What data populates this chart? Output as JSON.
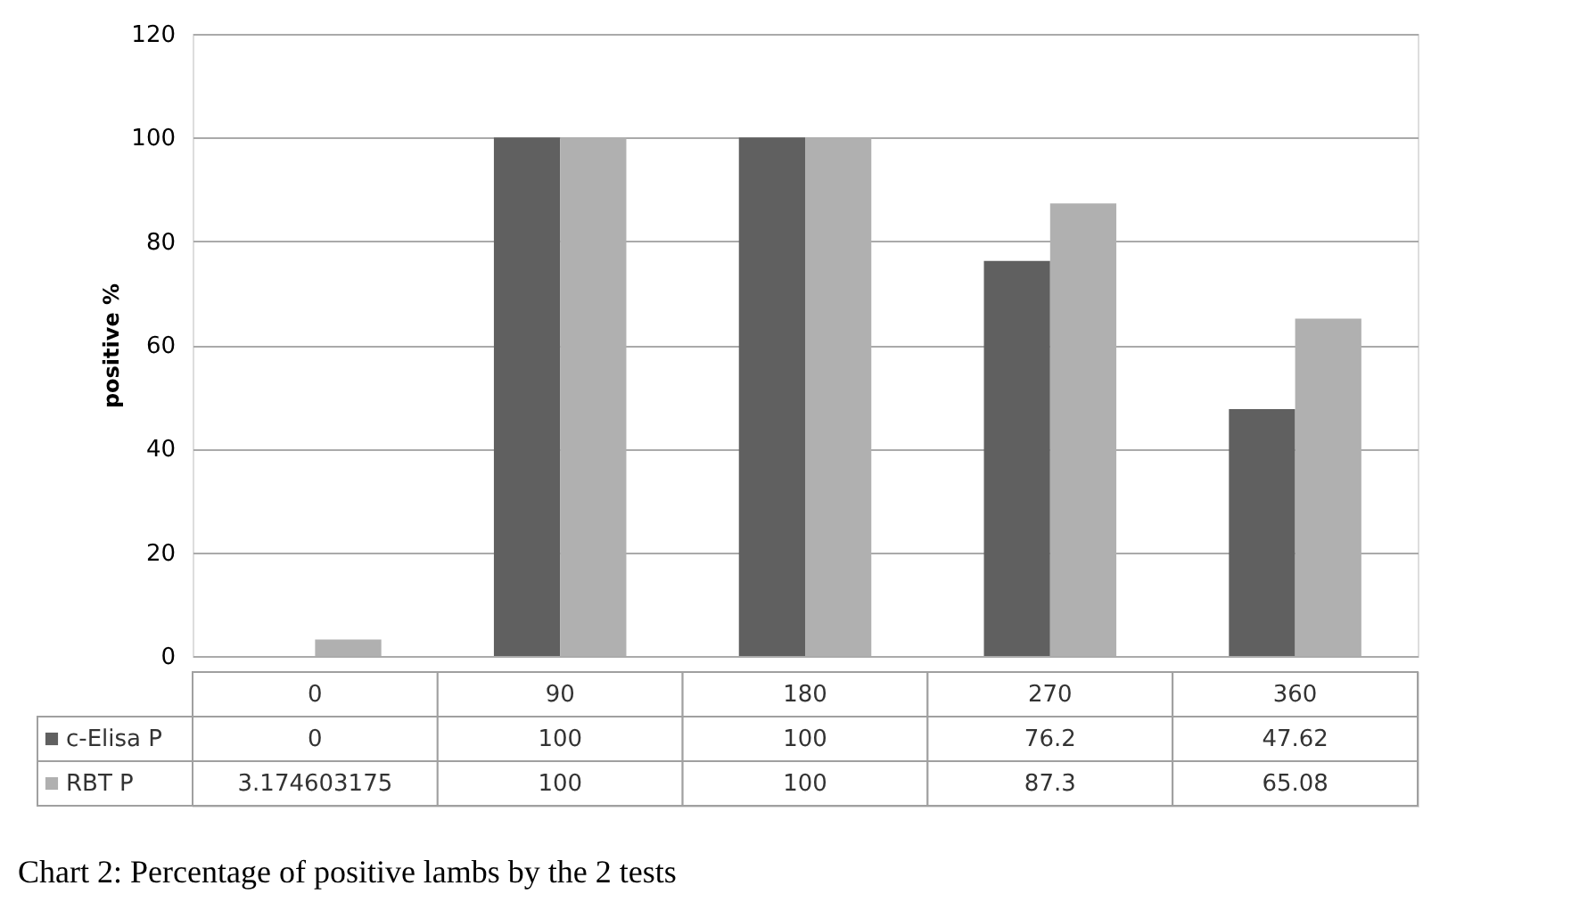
{
  "chart_data": {
    "type": "bar",
    "ylabel": "positive %",
    "categories": [
      "0",
      "90",
      "180",
      "270",
      "360"
    ],
    "series": [
      {
        "name": "c-Elisa P",
        "color": "#606060",
        "values": [
          0,
          100,
          100,
          76.2,
          47.62
        ]
      },
      {
        "name": "RBT P",
        "color": "#b0b0b0",
        "values": [
          3.174603175,
          100,
          100,
          87.3,
          65.08
        ]
      }
    ],
    "ylim": [
      0,
      120
    ],
    "yticks": [
      0,
      20,
      40,
      60,
      80,
      100,
      120
    ],
    "grid": "y",
    "legend": "bottom",
    "data_labels": true,
    "annotations": [
      "Chart 2: Percentage of positive lambs by the 2 tests"
    ]
  }
}
